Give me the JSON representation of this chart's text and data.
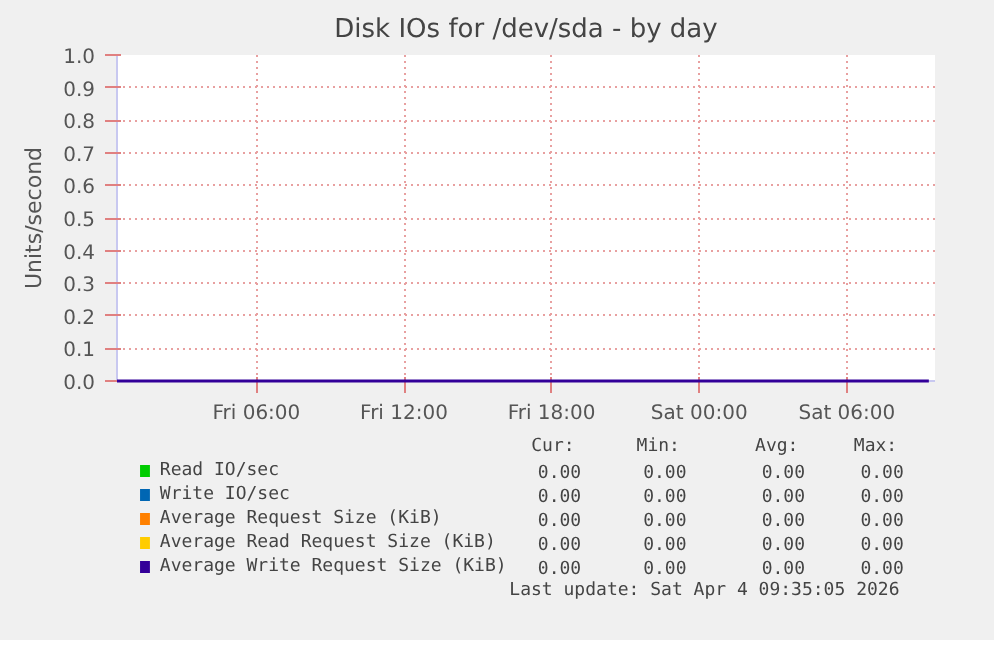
{
  "chart_data": {
    "type": "line",
    "title": "Disk IOs for /dev/sda - by day",
    "ylabel": "Units/second",
    "x": [
      "2026-04-03T00:20",
      "2026-04-04T09:20"
    ],
    "xlim": [
      "2026-04-03T00:20",
      "2026-04-04T09:35"
    ],
    "xticks": [
      {
        "value": "2026-04-03T06:00",
        "label": "Fri 06:00"
      },
      {
        "value": "2026-04-03T12:00",
        "label": "Fri 12:00"
      },
      {
        "value": "2026-04-03T18:00",
        "label": "Fri 18:00"
      },
      {
        "value": "2026-04-04T00:00",
        "label": "Sat 00:00"
      },
      {
        "value": "2026-04-04T06:00",
        "label": "Sat 06:00"
      }
    ],
    "ylim": [
      0,
      1
    ],
    "yticks": [
      {
        "value": 0,
        "label": "0.0"
      },
      {
        "value": 0.1,
        "label": "0.1"
      },
      {
        "value": 0.2,
        "label": "0.2"
      },
      {
        "value": 0.3,
        "label": "0.3"
      },
      {
        "value": 0.4,
        "label": "0.4"
      },
      {
        "value": 0.5,
        "label": "0.5"
      },
      {
        "value": 0.6,
        "label": "0.6"
      },
      {
        "value": 0.7,
        "label": "0.7"
      },
      {
        "value": 0.8,
        "label": "0.8"
      },
      {
        "value": 0.9,
        "label": "0.9"
      },
      {
        "value": 1,
        "label": "1.0"
      }
    ],
    "grid": true,
    "legend": "bottom",
    "series": [
      {
        "name": "Read IO/sec",
        "color": "#00cc00",
        "values": [
          null,
          null
        ]
      },
      {
        "name": "Write IO/sec",
        "color": "#0066b3",
        "values": [
          null,
          null
        ]
      },
      {
        "name": "Average Request Size (KiB)",
        "color": "#ff8000",
        "values": [
          null,
          null
        ]
      },
      {
        "name": "Average Read Request Size (KiB)",
        "color": "#ffcc00",
        "values": [
          null,
          null
        ]
      },
      {
        "name": "Average Write Request Size (KiB)",
        "color": "#330099",
        "values": [
          0,
          0
        ]
      }
    ],
    "annotations": [
      "Cur:",
      "Min:",
      "Avg:",
      "Max:",
      "0.00",
      "0.00",
      "0.00",
      "0.00",
      "0.00",
      "0.00",
      "0.00",
      "0.00",
      "0.00",
      "0.00",
      "0.00",
      "0.00",
      "0.00",
      "0.00",
      "0.00",
      "0.00",
      "0.00",
      "0.00",
      "0.00",
      "0.00",
      "Last update: Sat Apr  4 09:35:05 2026"
    ]
  }
}
